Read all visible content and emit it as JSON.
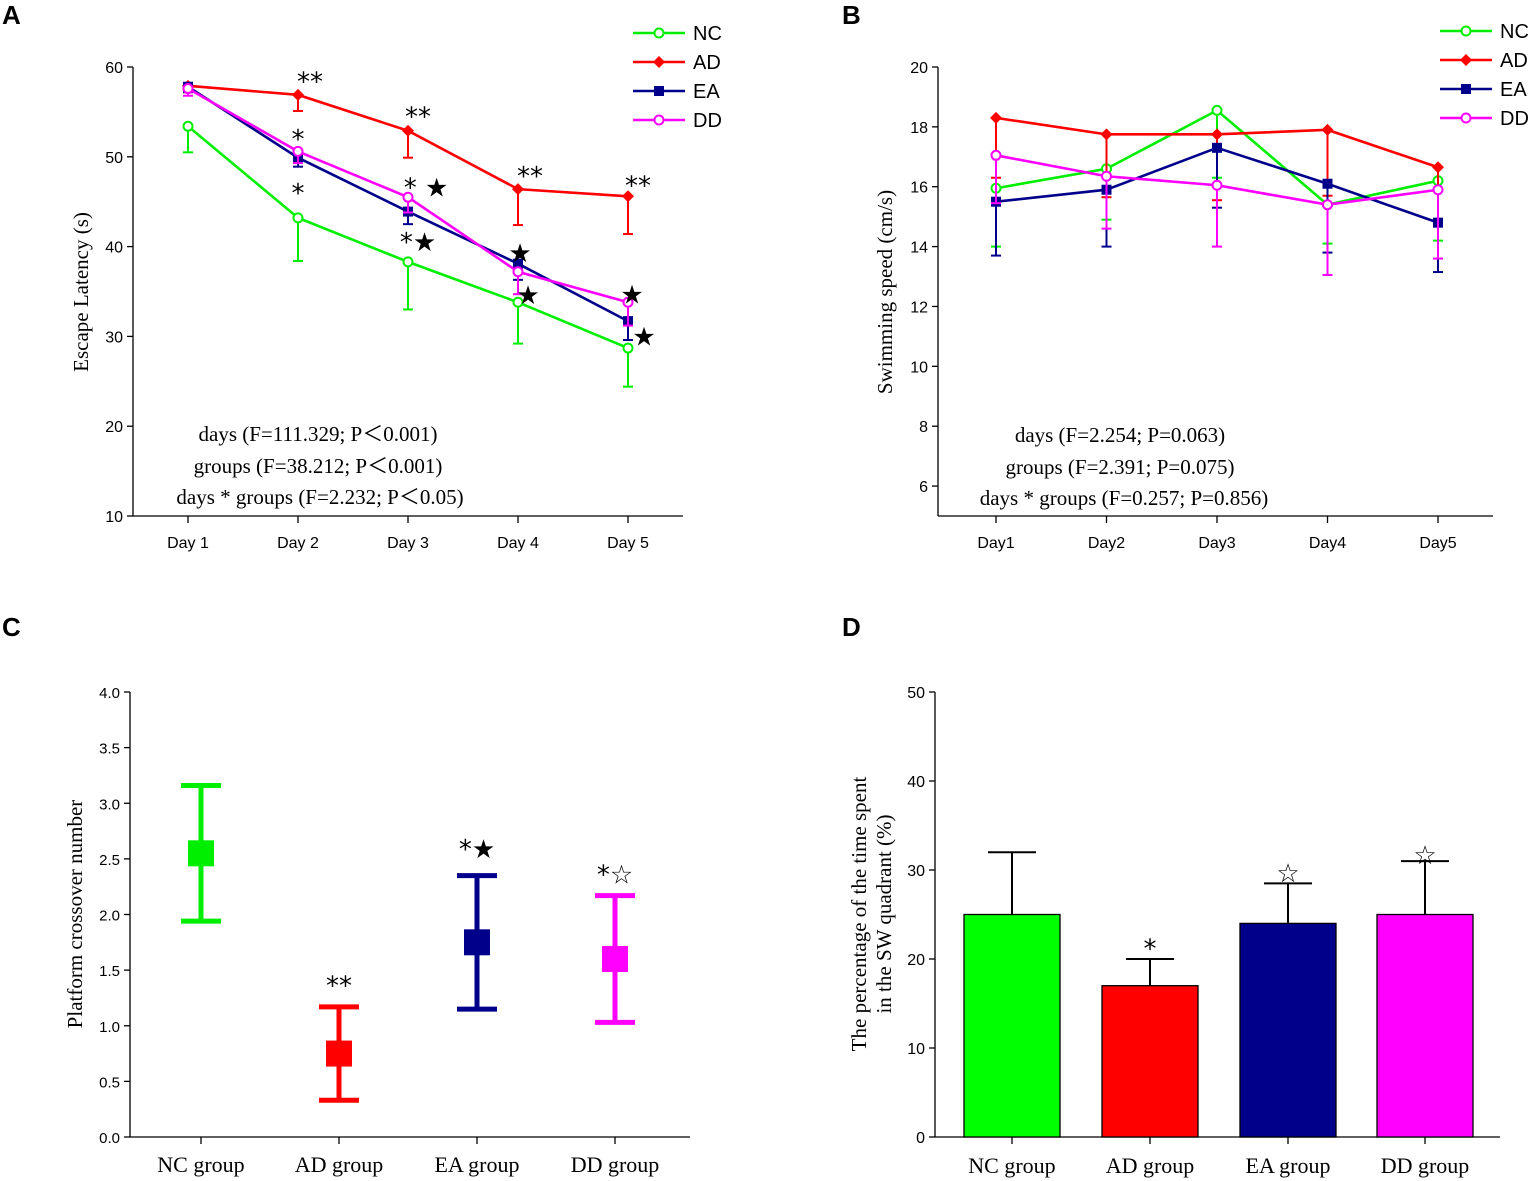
{
  "panels": [
    {
      "letter": "A",
      "chart_data": {
        "type": "line",
        "xlabel": "",
        "ylabel": "Escape Latency (s)",
        "ylim": [
          10,
          60
        ],
        "yticks": [
          10,
          20,
          30,
          40,
          50,
          60
        ],
        "categories": [
          "Day 1",
          "Day 2",
          "Day 3",
          "Day 4",
          "Day 5"
        ],
        "series": [
          {
            "name": "NC",
            "color": "#00ee00",
            "marker": "circle",
            "values": [
              53.4,
              43.2,
              38.3,
              33.8,
              28.7
            ],
            "errors": [
              2.9,
              4.8,
              5.3,
              4.6,
              4.3
            ]
          },
          {
            "name": "AD",
            "color": "#ff0000",
            "marker": "diamond",
            "values": [
              57.9,
              56.9,
              52.9,
              46.4,
              45.6
            ],
            "errors": [
              0.7,
              1.8,
              3.0,
              4.0,
              4.2
            ]
          },
          {
            "name": "EA",
            "color": "#00008b",
            "marker": "square",
            "values": [
              57.8,
              49.9,
              43.9,
              38.1,
              31.7
            ],
            "errors": [
              0.6,
              1.0,
              1.4,
              1.8,
              2.1
            ]
          },
          {
            "name": "DD",
            "color": "#ff00ff",
            "marker": "circle",
            "values": [
              57.6,
              50.6,
              45.5,
              37.2,
              33.8
            ],
            "errors": [
              0.8,
              1.3,
              1.7,
              2.5,
              2.6
            ]
          }
        ],
        "stats": [
          "days (F=111.329; P＜0.001)",
          "groups (F=38.212; P＜0.001)",
          "days * groups (F=2.232; P＜0.05)"
        ],
        "annotations": [
          {
            "text": "**",
            "day": "Day 2",
            "y": 58.5
          },
          {
            "text": "**",
            "day": "Day 3",
            "y": 54.6
          },
          {
            "text": "**",
            "day": "Day 4",
            "y": 48.0
          },
          {
            "text": "**",
            "day": "Day 5",
            "y": 46.9
          },
          {
            "text": "*",
            "day": "Day 2",
            "y": 52.1
          },
          {
            "text": "*",
            "day": "Day 2",
            "y": 46.1
          },
          {
            "text": "* ★",
            "day": "Day 3",
            "y": 46.7
          },
          {
            "text": "*★",
            "day": "Day 3",
            "y": 40.6
          },
          {
            "text": "★",
            "day": "Day 4",
            "y": 39.4
          },
          {
            "text": "★",
            "day": "Day 4",
            "y": 34.7
          },
          {
            "text": "★",
            "day": "Day 5",
            "y": 34.8
          },
          {
            "text": "★",
            "day": "Day 5",
            "y": 30.1
          }
        ]
      }
    },
    {
      "letter": "B",
      "chart_data": {
        "type": "line",
        "xlabel": "",
        "ylabel": "Swimming speed (cm/s)",
        "ylim": [
          5,
          20
        ],
        "yticks": [
          6,
          8,
          10,
          12,
          14,
          16,
          18,
          20
        ],
        "categories": [
          "Day1",
          "Day2",
          "Day3",
          "Day4",
          "Day5"
        ],
        "series": [
          {
            "name": "NC",
            "color": "#00ee00",
            "marker": "circle",
            "values": [
              15.95,
              16.6,
              18.55,
              15.4,
              16.2
            ],
            "errors": [
              1.95,
              1.7,
              2.25,
              1.3,
              2.0
            ]
          },
          {
            "name": "AD",
            "color": "#ff0000",
            "marker": "diamond",
            "values": [
              18.3,
              17.75,
              17.75,
              17.9,
              16.65
            ],
            "errors": [
              2.0,
              2.1,
              2.2,
              2.2,
              1.95
            ]
          },
          {
            "name": "EA",
            "color": "#00008b",
            "marker": "square",
            "values": [
              15.5,
              15.9,
              17.3,
              16.1,
              14.8
            ],
            "errors": [
              1.8,
              1.9,
              2.0,
              2.3,
              1.65
            ]
          },
          {
            "name": "DD",
            "color": "#ff00ff",
            "marker": "circle",
            "values": [
              17.05,
              16.35,
              16.05,
              15.4,
              15.9
            ],
            "errors": [
              1.6,
              1.75,
              2.05,
              2.35,
              2.3
            ]
          }
        ],
        "stats": [
          "days (F=2.254; P=0.063)",
          "groups (F=2.391; P=0.075)",
          "days * groups (F=0.257; P=0.856)"
        ]
      }
    },
    {
      "letter": "C",
      "chart_data": {
        "type": "scatter",
        "xlabel": "",
        "ylabel": "Platform crossover number",
        "ylim": [
          0,
          4
        ],
        "yticks": [
          "0.0",
          "0.5",
          "1.0",
          "1.5",
          "2.0",
          "2.5",
          "3.0",
          "3.5",
          "4.0"
        ],
        "categories": [
          "NC group",
          "AD group",
          "EA group",
          "DD group"
        ],
        "values": [
          2.55,
          0.75,
          1.75,
          1.6
        ],
        "errors": [
          0.61,
          0.42,
          0.6,
          0.57
        ],
        "colors": [
          "#00ee00",
          "#ff0000",
          "#00008b",
          "#ff00ff"
        ],
        "annotations": [
          {
            "text": "**",
            "group": "AD group",
            "y": 1.37
          },
          {
            "text": "*★",
            "group": "EA group",
            "y": 2.6
          },
          {
            "text": "*☆",
            "group": "DD group",
            "y": 2.37
          }
        ]
      }
    },
    {
      "letter": "D",
      "chart_data": {
        "type": "bar",
        "xlabel": "",
        "ylabel_lines": [
          "The percentage of the time spent",
          "in the SW quadrant (%)"
        ],
        "ylim": [
          0,
          50
        ],
        "yticks": [
          0,
          10,
          20,
          30,
          40,
          50
        ],
        "categories": [
          "NC group",
          "AD group",
          "EA group",
          "DD group"
        ],
        "values": [
          25,
          17,
          24,
          25
        ],
        "errors": [
          7,
          3,
          4.5,
          6
        ],
        "colors": [
          "#00ff00",
          "#ff0000",
          "#00008b",
          "#ff00ff"
        ],
        "annotations": [
          {
            "text": "*",
            "group": "AD group",
            "y": 21.3
          },
          {
            "text": "☆",
            "group": "EA group",
            "y": 29.8
          },
          {
            "text": "☆",
            "group": "DD group",
            "y": 31.8
          }
        ]
      }
    }
  ]
}
